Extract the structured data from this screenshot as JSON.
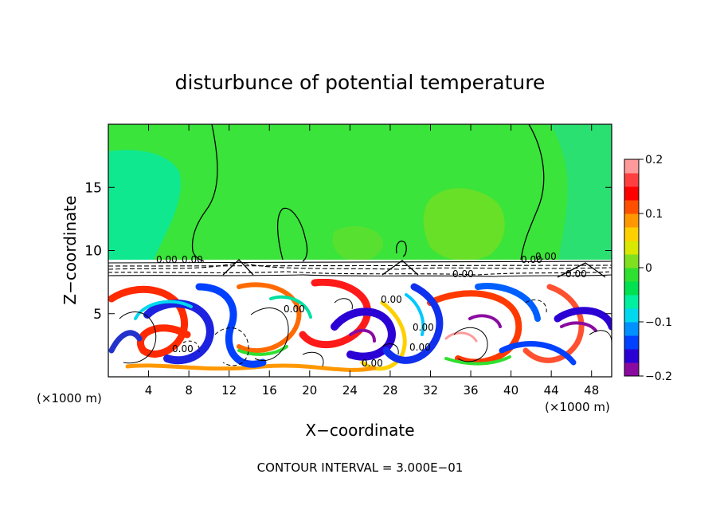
{
  "chart_data": {
    "type": "heatmap",
    "title": "disturbunce of potential temperature",
    "xlabel": "X−coordinate",
    "ylabel": "Z−coordinate",
    "x_unit_left": "(×1000 m)",
    "x_unit_right": "(×1000 m)",
    "xlim": [
      0,
      50
    ],
    "ylim": [
      0,
      20
    ],
    "x_ticks": [
      4,
      8,
      12,
      16,
      20,
      24,
      28,
      32,
      36,
      40,
      44,
      48
    ],
    "x_tick_labels": [
      "4",
      "8",
      "12",
      "16",
      "20",
      "24",
      "28",
      "32",
      "36",
      "40",
      "44",
      "48"
    ],
    "y_ticks": [
      5,
      10,
      15
    ],
    "y_tick_labels": [
      "5",
      "10",
      "15"
    ],
    "colorbar": {
      "range": [
        -0.2,
        0.2
      ],
      "ticks": [
        0.2,
        0.1,
        0,
        -0.1,
        -0.2
      ],
      "tick_labels": [
        "0.2",
        "0.1",
        "0",
        "−0.1",
        "−0.2"
      ],
      "colors": [
        "#8a0aa0",
        "#2b00d4",
        "#0040ff",
        "#0090ff",
        "#00d8f0",
        "#00f0a0",
        "#00e050",
        "#30e030",
        "#80e020",
        "#d8e800",
        "#ffd000",
        "#ff9800",
        "#ff5000",
        "#ff0000",
        "#ff4040",
        "#ff9a9a"
      ]
    },
    "contour_labels": [
      "0.00",
      "0.00",
      "0.00",
      "0.00",
      "0.00",
      "0.00",
      "0.00",
      "0.00",
      "0.00",
      "0.00",
      "0.00",
      "0.00"
    ],
    "interval_text": "CONTOUR INTERVAL = 3.000E−01"
  }
}
